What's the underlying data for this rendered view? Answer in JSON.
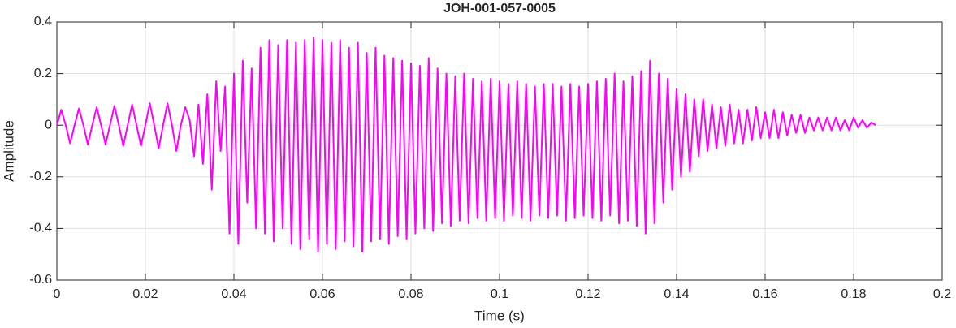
{
  "chart_data": {
    "type": "line",
    "title": "JOH-001-057-0005",
    "x_label": "Time (s)",
    "y_label": "Amplitude",
    "x": [
      0,
      0.001,
      0.002,
      0.003,
      0.004,
      0.005,
      0.006,
      0.007,
      0.008,
      0.009,
      0.01,
      0.011,
      0.012,
      0.013,
      0.014,
      0.015,
      0.016,
      0.017,
      0.018,
      0.019,
      0.02,
      0.021,
      0.022,
      0.023,
      0.024,
      0.025,
      0.026,
      0.027,
      0.028,
      0.029,
      0.03,
      0.031,
      0.032,
      0.033,
      0.034,
      0.035,
      0.036,
      0.037,
      0.038,
      0.039,
      0.04,
      0.041,
      0.042,
      0.043,
      0.044,
      0.045,
      0.046,
      0.047,
      0.048,
      0.049,
      0.05,
      0.051,
      0.052,
      0.053,
      0.054,
      0.055,
      0.056,
      0.057,
      0.058,
      0.059,
      0.06,
      0.061,
      0.062,
      0.063,
      0.064,
      0.065,
      0.066,
      0.067,
      0.068,
      0.069,
      0.07,
      0.071,
      0.072,
      0.073,
      0.074,
      0.075,
      0.076,
      0.077,
      0.078,
      0.079,
      0.08,
      0.081,
      0.082,
      0.083,
      0.084,
      0.085,
      0.086,
      0.087,
      0.088,
      0.089,
      0.09,
      0.091,
      0.092,
      0.093,
      0.094,
      0.095,
      0.096,
      0.097,
      0.098,
      0.099,
      0.1,
      0.101,
      0.102,
      0.103,
      0.104,
      0.105,
      0.106,
      0.107,
      0.108,
      0.109,
      0.11,
      0.111,
      0.112,
      0.113,
      0.114,
      0.115,
      0.116,
      0.117,
      0.118,
      0.119,
      0.12,
      0.121,
      0.122,
      0.123,
      0.124,
      0.125,
      0.126,
      0.127,
      0.128,
      0.129,
      0.13,
      0.131,
      0.132,
      0.133,
      0.134,
      0.135,
      0.136,
      0.137,
      0.138,
      0.139,
      0.14,
      0.141,
      0.142,
      0.143,
      0.144,
      0.145,
      0.146,
      0.147,
      0.148,
      0.149,
      0.15,
      0.151,
      0.152,
      0.153,
      0.154,
      0.155,
      0.156,
      0.157,
      0.158,
      0.159,
      0.16,
      0.161,
      0.162,
      0.163,
      0.164,
      0.165,
      0.166,
      0.167,
      0.168,
      0.169,
      0.17,
      0.171,
      0.172,
      0.173,
      0.174,
      0.175,
      0.176,
      0.177,
      0.178,
      0.179,
      0.18,
      0.181,
      0.182,
      0.183,
      0.184,
      0.185
    ],
    "series": [
      {
        "color": "#ff00ff",
        "values": [
          0,
          0.06,
          0,
          -0.07,
          0,
          0.065,
          0,
          -0.075,
          0,
          0.07,
          0,
          -0.075,
          0,
          0.075,
          0,
          -0.08,
          0,
          0.08,
          0,
          -0.08,
          0,
          0.085,
          0,
          -0.09,
          0,
          0.085,
          0,
          -0.1,
          0,
          0.07,
          0.02,
          -0.12,
          0.08,
          -0.15,
          0.12,
          -0.25,
          0.17,
          -0.1,
          0.15,
          -0.42,
          0.2,
          -0.46,
          0.25,
          -0.3,
          0.22,
          -0.4,
          0.3,
          -0.42,
          0.33,
          -0.45,
          0.31,
          -0.4,
          0.33,
          -0.46,
          0.32,
          -0.48,
          0.33,
          -0.44,
          0.34,
          -0.49,
          0.33,
          -0.46,
          0.32,
          -0.48,
          0.33,
          -0.45,
          0.3,
          -0.47,
          0.32,
          -0.49,
          0.28,
          -0.45,
          0.3,
          -0.44,
          0.27,
          -0.46,
          0.26,
          -0.43,
          0.25,
          -0.44,
          0.24,
          -0.42,
          0.23,
          -0.4,
          0.26,
          -0.41,
          0.22,
          -0.38,
          0.2,
          -0.39,
          0.19,
          -0.37,
          0.2,
          -0.38,
          0.18,
          -0.36,
          0.17,
          -0.37,
          0.18,
          -0.36,
          0.17,
          -0.37,
          0.16,
          -0.35,
          0.17,
          -0.36,
          0.16,
          -0.37,
          0.15,
          -0.35,
          0.16,
          -0.36,
          0.16,
          -0.35,
          0.15,
          -0.37,
          0.16,
          -0.36,
          0.15,
          -0.35,
          0.16,
          -0.36,
          0.17,
          -0.37,
          0.18,
          -0.35,
          0.2,
          -0.38,
          0.17,
          -0.37,
          0.19,
          -0.39,
          0.21,
          -0.42,
          0.25,
          -0.38,
          0.2,
          -0.3,
          0.18,
          -0.25,
          0.14,
          -0.2,
          0.12,
          -0.18,
          0.1,
          -0.12,
          0.1,
          -0.1,
          0.08,
          -0.09,
          0.07,
          -0.08,
          0.08,
          -0.07,
          0.06,
          -0.07,
          0.06,
          -0.06,
          0.07,
          -0.05,
          0.05,
          -0.05,
          0.06,
          -0.05,
          0.05,
          -0.04,
          0.04,
          -0.03,
          0.04,
          -0.03,
          0.03,
          -0.02,
          0.03,
          -0.02,
          0.03,
          -0.02,
          0.03,
          -0.02,
          0.02,
          -0.02,
          0.03,
          -0.01,
          0.02,
          -0.01,
          0.01,
          0
        ]
      }
    ],
    "xlim": [
      0,
      0.2
    ],
    "xticks": [
      0,
      0.02,
      0.04,
      0.06,
      0.08,
      0.1,
      0.12,
      0.14,
      0.16,
      0.18,
      0.2
    ],
    "ylim": [
      -0.6,
      0.4
    ],
    "yticks": [
      -0.6,
      -0.4,
      -0.2,
      0,
      0.2,
      0.4
    ],
    "grid": true
  }
}
